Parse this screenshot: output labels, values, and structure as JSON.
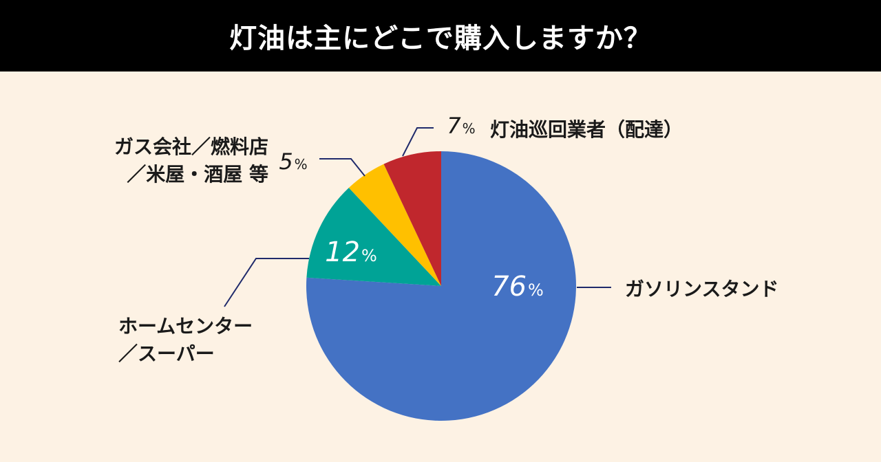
{
  "header": {
    "title": "灯油は主にどこで購入しますか？"
  },
  "colors": {
    "background": "#fdf2e4",
    "header_bg": "#000000",
    "header_text": "#ffffff",
    "leader": "#1f2a6b"
  },
  "chart_data": {
    "type": "pie",
    "title": "灯油は主にどこで購入しますか？",
    "unit": "%",
    "slices": [
      {
        "label": [
          "ガソリンスタンド"
        ],
        "value": 76,
        "value_text": "76",
        "color": "#4472c4",
        "pct_color": "#ffffff"
      },
      {
        "label": [
          "ホームセンター",
          "／スーパー"
        ],
        "value": 12,
        "value_text": "12",
        "color": "#00a396",
        "pct_color": "#ffffff"
      },
      {
        "label": [
          "ガス会社／燃料店",
          "／米屋・酒屋 等"
        ],
        "value": 5,
        "value_text": "5",
        "color": "#ffc000",
        "pct_color": "#1a1a1a"
      },
      {
        "label": [
          "灯油巡回業者（配達）"
        ],
        "value": 7,
        "value_text": "7",
        "color": "#c0272d",
        "pct_color": "#1a1a1a"
      }
    ]
  }
}
